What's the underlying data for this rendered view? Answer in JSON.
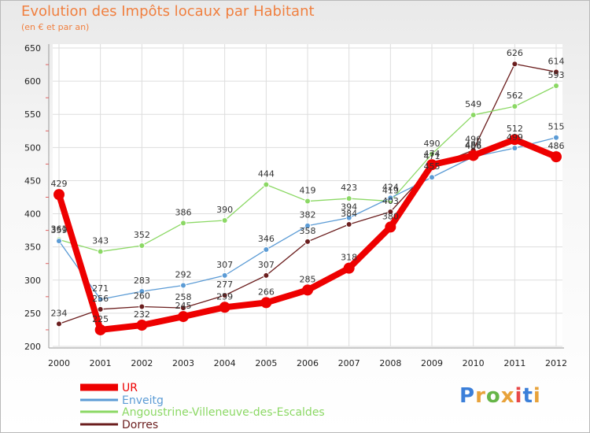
{
  "header": {
    "title": "Evolution des Impôts locaux par Habitant",
    "subtitle": "(en € et par an)"
  },
  "logo": {
    "letters": [
      "P",
      "r",
      "o",
      "x",
      "i",
      "t",
      "i"
    ],
    "colors": [
      "#3b7fd9",
      "#e8a23a",
      "#66b548",
      "#e8a23a",
      "#e84848",
      "#3b7fd9",
      "#e8a23a"
    ]
  },
  "chart_data": {
    "type": "line",
    "x": [
      "2000",
      "2001",
      "2002",
      "2003",
      "2004",
      "2005",
      "2006",
      "2007",
      "2008",
      "2009",
      "2010",
      "2011",
      "2012"
    ],
    "ylim": [
      200,
      650
    ],
    "yticks": [
      200,
      250,
      300,
      350,
      400,
      450,
      500,
      550,
      600,
      650
    ],
    "grid": true,
    "legend": "bottom-left",
    "series": [
      {
        "name": "UR",
        "color": "#ee0000",
        "values": [
          429,
          225,
          232,
          245,
          259,
          266,
          285,
          318,
          380,
          474,
          488,
          512,
          486
        ]
      },
      {
        "name": "Enveitg",
        "color": "#5b9bd5",
        "values": [
          359,
          271,
          283,
          292,
          307,
          346,
          382,
          394,
          424,
          455,
          486,
          499,
          515
        ]
      },
      {
        "name": "Angoustrine-Villeneuve-des-Escaldes",
        "color": "#8bd864",
        "values": [
          361,
          343,
          352,
          386,
          390,
          444,
          419,
          423,
          419,
          490,
          549,
          562,
          593
        ]
      },
      {
        "name": "Dorres",
        "color": "#6b1e1e",
        "values": [
          234,
          256,
          260,
          258,
          277,
          307,
          358,
          384,
          403,
          471,
          496,
          626,
          614
        ]
      }
    ]
  }
}
